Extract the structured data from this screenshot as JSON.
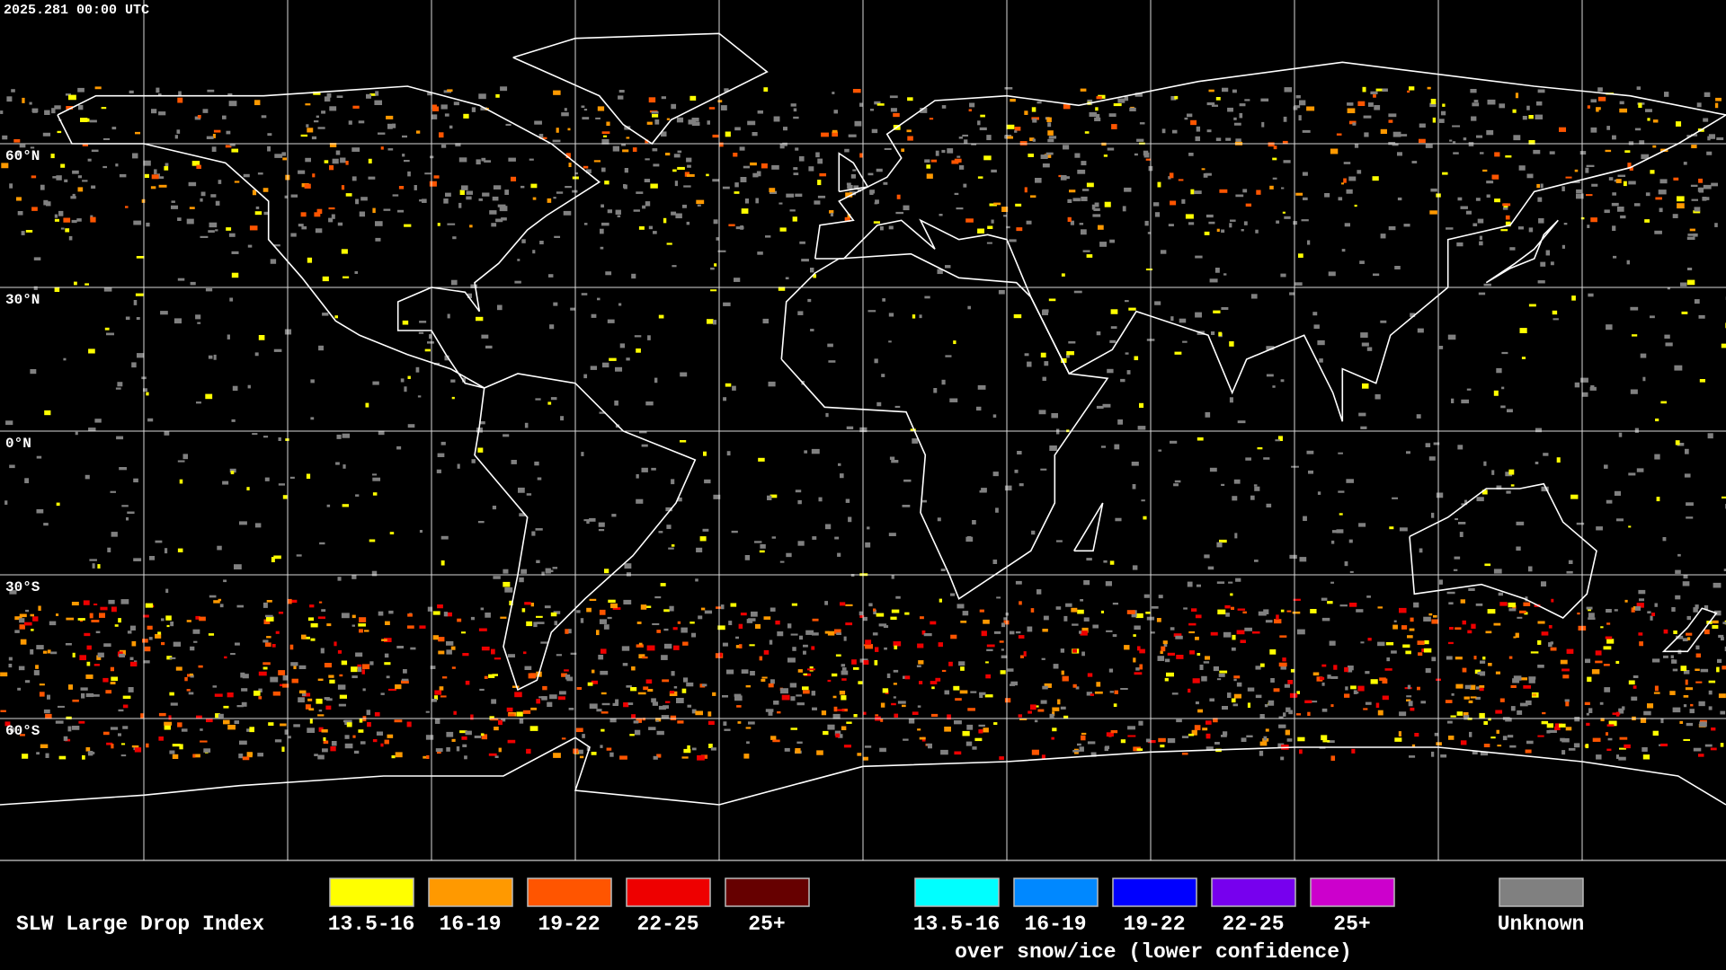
{
  "header": {
    "timestamp": "2025.281 00:00 UTC"
  },
  "map": {
    "lat_labels": [
      "60°N",
      "30°N",
      "0°N",
      "30°S",
      "60°S"
    ]
  },
  "legend": {
    "title": "SLW Large Drop Index",
    "groups": [
      {
        "items": [
          {
            "label": "13.5-16",
            "color": "#ffff00"
          },
          {
            "label": "16-19",
            "color": "#ff9900"
          },
          {
            "label": "19-22",
            "color": "#ff5500"
          },
          {
            "label": "22-25",
            "color": "#ee0000"
          },
          {
            "label": "25+",
            "color": "#660000"
          }
        ]
      },
      {
        "items": [
          {
            "label": "13.5-16",
            "color": "#00ffff"
          },
          {
            "label": "16-19",
            "color": "#0088ff"
          },
          {
            "label": "19-22",
            "color": "#0000ff"
          },
          {
            "label": "22-25",
            "color": "#7700ee"
          },
          {
            "label": "25+",
            "color": "#cc00cc"
          }
        ],
        "caption": "over snow/ice (lower confidence)"
      }
    ],
    "unknown": {
      "label": "Unknown",
      "color": "#808080"
    }
  }
}
